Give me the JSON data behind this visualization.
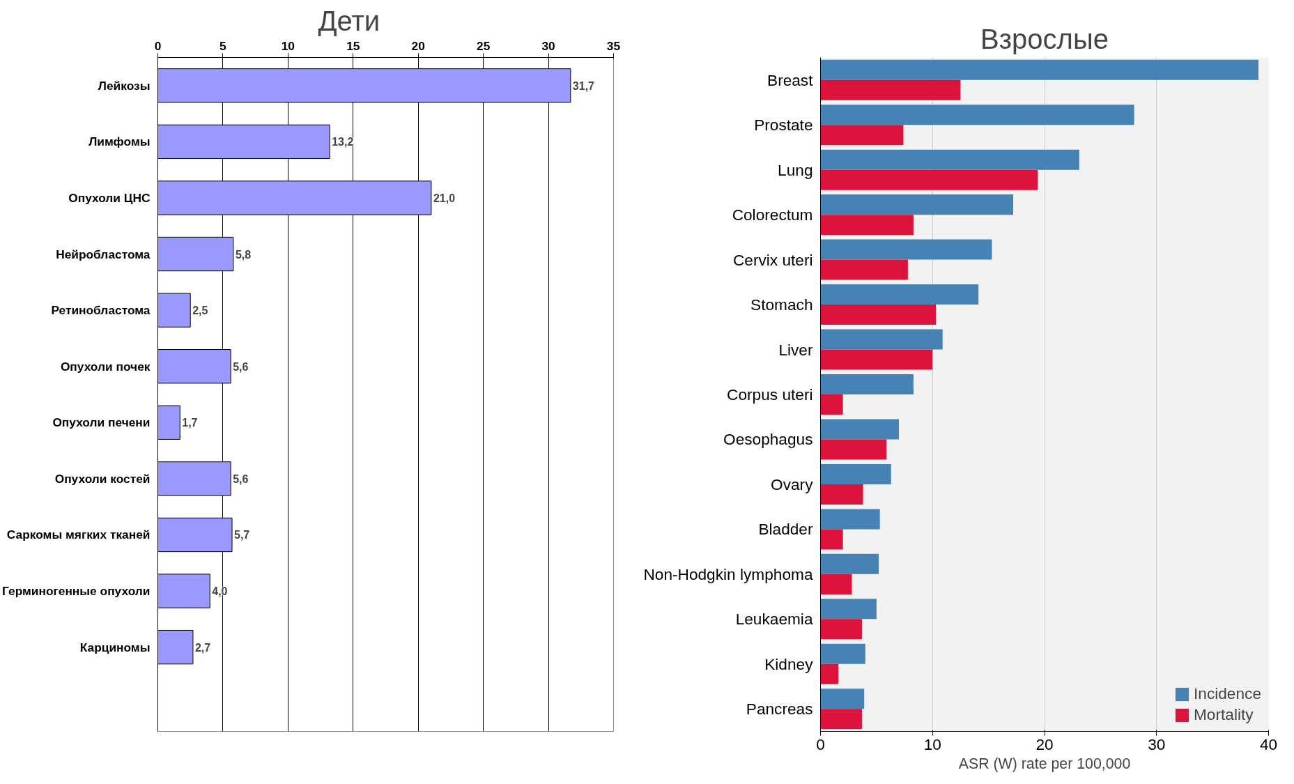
{
  "chart_data": [
    {
      "type": "bar",
      "orientation": "horizontal",
      "title": "Дети",
      "categories": [
        "Лейкозы",
        "Лимфомы",
        "Опухоли ЦНС",
        "Нейробластома",
        "Ретинобластома",
        "Опухоли почек",
        "Опухоли печени",
        "Опухоли костей",
        "Саркомы мягких тканей",
        "Герминогенные опухоли",
        "Карциномы"
      ],
      "values": [
        31.7,
        13.2,
        21.0,
        5.8,
        2.5,
        5.6,
        1.7,
        5.6,
        5.7,
        4.0,
        2.7
      ],
      "value_labels": [
        "31,7",
        "13,2",
        "21,0",
        "5,8",
        "2,5",
        "5,6",
        "1,7",
        "5,6",
        "5,7",
        "4,0",
        "2,7"
      ],
      "color": "#9999ff",
      "xlim": [
        0,
        35
      ],
      "xticks": [
        0,
        5,
        10,
        15,
        20,
        25,
        30,
        35
      ],
      "grid": "x",
      "legend": false
    },
    {
      "type": "bar",
      "orientation": "horizontal",
      "title": "Взрослые",
      "xlabel": "ASR (W) rate per 100,000",
      "categories": [
        "Breast",
        "Prostate",
        "Lung",
        "Colorectum",
        "Cervix uteri",
        "Stomach",
        "Liver",
        "Corpus uteri",
        "Oesophagus",
        "Ovary",
        "Bladder",
        "Non-Hodgkin lymphoma",
        "Leukaemia",
        "Kidney",
        "Pancreas"
      ],
      "series": [
        {
          "name": "Incidence",
          "color": "#4682b4",
          "values": [
            39.1,
            28.0,
            23.1,
            17.2,
            15.3,
            14.1,
            10.9,
            8.3,
            7.0,
            6.3,
            5.3,
            5.2,
            5.0,
            4.0,
            3.9
          ]
        },
        {
          "name": "Mortality",
          "color": "#dc143c",
          "values": [
            12.5,
            7.4,
            19.4,
            8.3,
            7.8,
            10.3,
            10.0,
            2.0,
            5.9,
            3.8,
            2.0,
            2.8,
            3.7,
            1.6,
            3.7
          ]
        }
      ],
      "xlim": [
        0,
        40
      ],
      "xticks": [
        0,
        10,
        20,
        30,
        40
      ],
      "grid": "x",
      "legend": "bottom right"
    }
  ]
}
